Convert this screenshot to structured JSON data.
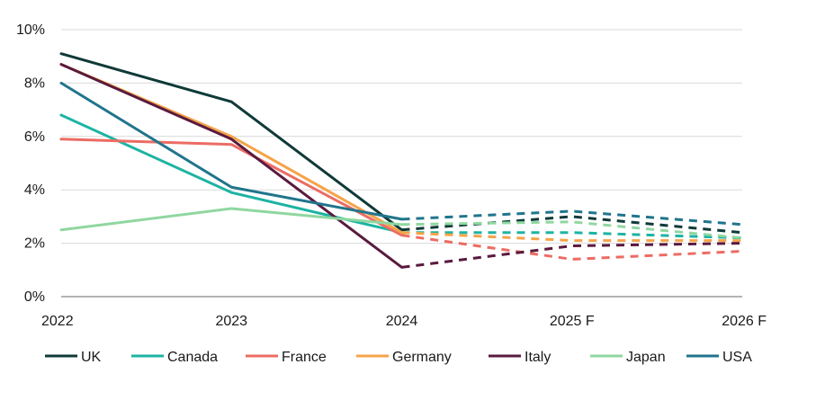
{
  "chart_data": {
    "type": "line",
    "categories": [
      "2022",
      "2023",
      "2024",
      "2025 F",
      "2026 F"
    ],
    "ylim": [
      0,
      10
    ],
    "y_ticks": [
      "0%",
      "2%",
      "4%",
      "6%",
      "8%",
      "10%"
    ],
    "y_tick_values": [
      0,
      2,
      4,
      6,
      8,
      10
    ],
    "grid": "horizontal",
    "legend_position": "bottom",
    "forecast_from_index": 2,
    "series": [
      {
        "name": "UK",
        "color": "#0f3a38",
        "values": [
          9.1,
          7.3,
          2.5,
          3.0,
          2.4
        ]
      },
      {
        "name": "Canada",
        "color": "#1db3a3",
        "values": [
          6.8,
          3.9,
          2.4,
          2.4,
          2.2
        ]
      },
      {
        "name": "France",
        "color": "#ec6c63",
        "values": [
          5.9,
          5.7,
          2.3,
          1.4,
          1.7
        ]
      },
      {
        "name": "Germany",
        "color": "#f4a449",
        "values": [
          8.7,
          6.0,
          2.4,
          2.1,
          2.1
        ]
      },
      {
        "name": "Italy",
        "color": "#5a1a3e",
        "values": [
          8.7,
          5.9,
          1.1,
          1.9,
          2.0
        ]
      },
      {
        "name": "Japan",
        "color": "#8fd7a0",
        "values": [
          2.5,
          3.3,
          2.7,
          2.8,
          2.2
        ]
      },
      {
        "name": "USA",
        "color": "#20758c",
        "values": [
          8.0,
          4.1,
          2.9,
          3.2,
          2.7
        ]
      }
    ]
  }
}
